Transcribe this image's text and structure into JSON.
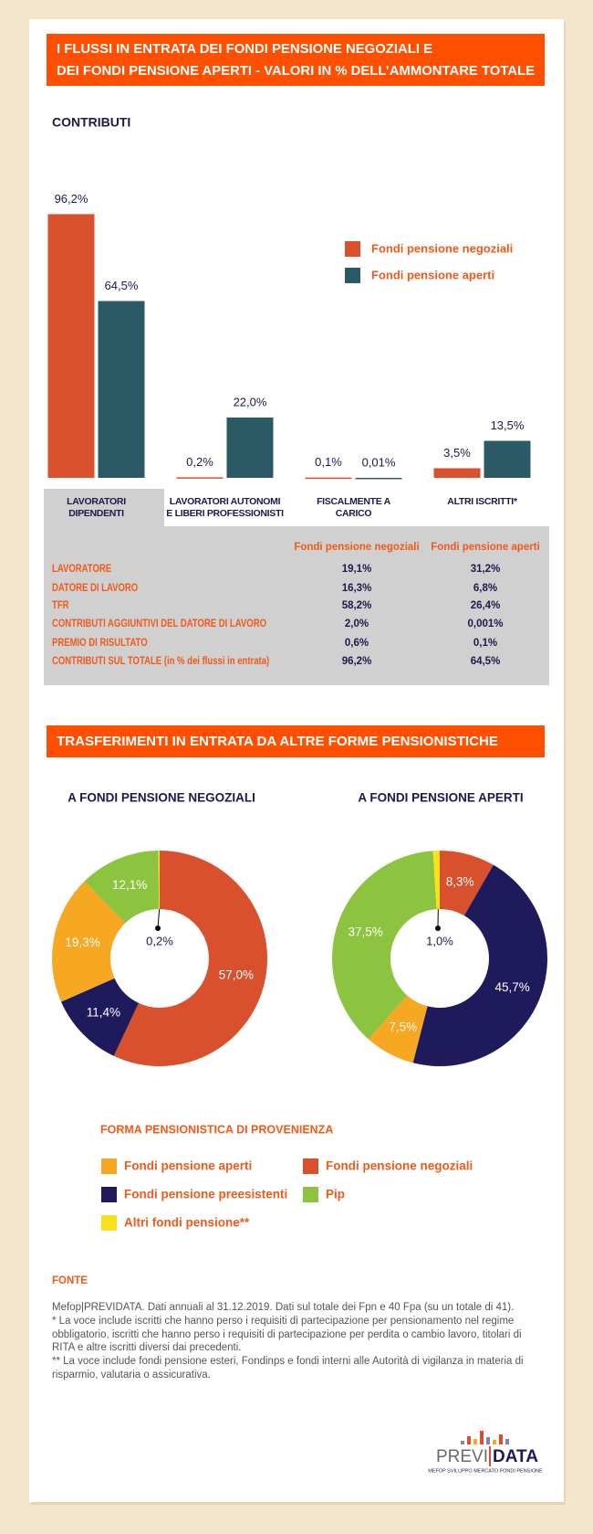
{
  "header": {
    "title_lines": [
      "I FLUSSI IN ENTRATA DEI FONDI PENSIONE NEGOZIALI E",
      "DEI FONDI PENSIONE APERTI - VALORI IN % DELL’AMMONTARE TOTALE"
    ]
  },
  "chart_data": [
    {
      "type": "bar",
      "title": "CONTRIBUTI",
      "categories": [
        "LAVORATORI\nDIPENDENTI",
        "LAVORATORI AUTONOMI\nE LIBERI PROFESSIONISTI",
        "FISCALMENTE A\nCARICO",
        "ALTRI ISCRITTI*"
      ],
      "series": [
        {
          "name": "Fondi pensione negoziali",
          "color": "#d9512c",
          "values": [
            96.2,
            0.2,
            0.1,
            3.5
          ],
          "value_labels": [
            "96,2%",
            "0,2%",
            "0,1%",
            "3,5%"
          ]
        },
        {
          "name": "Fondi pensione aperti",
          "color": "#2b5a66",
          "values": [
            64.5,
            22.0,
            0.01,
            13.5
          ],
          "value_labels": [
            "64,5%",
            "22,0%",
            "0,01%",
            "13,5%"
          ]
        }
      ],
      "ylim": [
        0,
        100
      ],
      "legend": "upper right"
    },
    {
      "type": "pie",
      "donut": true,
      "title": "A FONDI PENSIONE NEGOZIALI",
      "categories": [
        "Fondi pensione negoziali",
        "Fondi pensione preesistenti",
        "Fondi pensione aperti",
        "Pip",
        "Altri fondi pensione**"
      ],
      "colors": [
        "#d9512c",
        "#1e1a5c",
        "#f7a823",
        "#8cc43f",
        "#f9e11e"
      ],
      "values": [
        57.0,
        11.4,
        19.3,
        12.1,
        0.2
      ],
      "value_labels": [
        "57,0%",
        "11,4%",
        "19,3%",
        "12,1%",
        "0,2%"
      ]
    },
    {
      "type": "pie",
      "donut": true,
      "title": "A FONDI PENSIONE APERTI",
      "categories": [
        "Fondi pensione negoziali",
        "Fondi pensione preesistenti",
        "Fondi pensione aperti",
        "Pip",
        "Altri fondi pensione**"
      ],
      "colors": [
        "#d9512c",
        "#1e1a5c",
        "#f7a823",
        "#8cc43f",
        "#f9e11e"
      ],
      "values": [
        8.3,
        45.7,
        7.5,
        37.5,
        1.0
      ],
      "value_labels": [
        "8,3%",
        "45,7%",
        "7,5%",
        "37,5%",
        "1,0%"
      ]
    }
  ],
  "table": {
    "columns": [
      "Fondi pensione negoziali",
      "Fondi pensione aperti"
    ],
    "rows": [
      [
        "LAVORATORE",
        "19,1%",
        "31,2%"
      ],
      [
        "DATORE DI LAVORO",
        "16,3%",
        "6,8%"
      ],
      [
        "TFR",
        "58,2%",
        "26,4%"
      ],
      [
        "CONTRIBUTI AGGIUNTIVI DEL DATORE DI LAVORO",
        "2,0%",
        "0,001%"
      ],
      [
        "PREMIO DI RISULTATO",
        "0,6%",
        "0,1%"
      ],
      [
        "CONTRIBUTI SUL TOTALE (in % dei flussi in entrata)",
        "96,2%",
        "64,5%"
      ]
    ]
  },
  "section2": {
    "title": "TRASFERIMENTI IN ENTRATA DA ALTRE FORME PENSIONISTICHE"
  },
  "legend": {
    "title": "FORMA PENSIONISTICA DI PROVENIENZA"
  },
  "source": {
    "heading": "FONTE",
    "paragraphs": [
      "Mefop|PREVIDATA. Dati annuali al 31.12.2019. Dati sul totale dei Fpn e 40 Fpa (su un totale di 41).",
      "* La voce include iscritti che hanno perso i requisiti di partecipazione per pensionamento nel regime obbligatorio, iscritti che hanno perso i requisiti di partecipazione per perdita o cambio lavoro, titolari di RITA e altre iscritti diversi dai precedenti.",
      "** La voce include fondi pensione esteri, Fondinps e fondi interni alle Autorità di vigilanza in materia di risparmio, valutaria o assicurativa."
    ]
  },
  "logo": {
    "left": "PREVI",
    "right": "DATA",
    "tagline": "MEFOP SVILUPPO MERCATO FONDI PENSIONE"
  }
}
